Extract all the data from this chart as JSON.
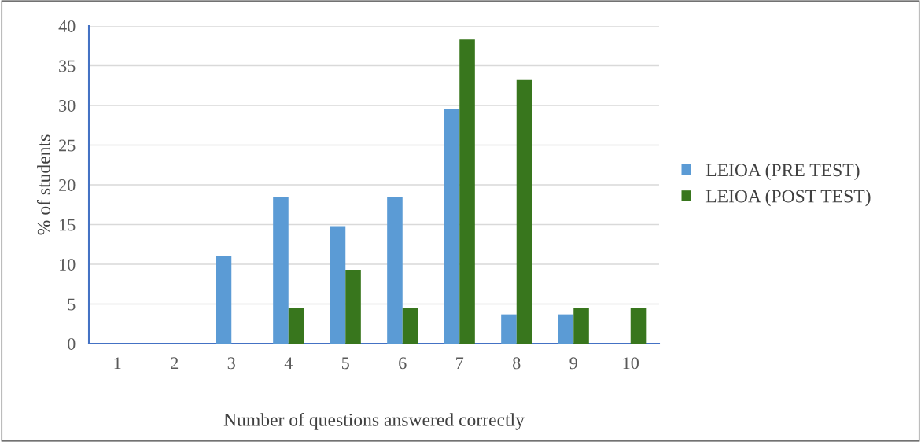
{
  "chart_data": {
    "type": "bar",
    "xlabel": "Number of questions answered correctly",
    "ylabel": "% of students",
    "categories": [
      "1",
      "2",
      "3",
      "4",
      "5",
      "6",
      "7",
      "8",
      "9",
      "10"
    ],
    "series": [
      {
        "name": "LEIOA (PRE TEST)",
        "color": "#5b9bd5",
        "values": [
          0,
          0,
          11.1,
          18.5,
          14.8,
          18.5,
          29.6,
          3.7,
          3.7,
          0
        ]
      },
      {
        "name": "LEIOA (POST TEST)",
        "color": "#38761d",
        "values": [
          0,
          0,
          0,
          4.5,
          9.3,
          4.5,
          38.3,
          33.2,
          4.5,
          4.5
        ]
      }
    ],
    "ylim": [
      0,
      40
    ],
    "yticks": [
      0,
      5,
      10,
      15,
      20,
      25,
      30,
      35,
      40
    ],
    "grid": "y",
    "legend": "right"
  }
}
